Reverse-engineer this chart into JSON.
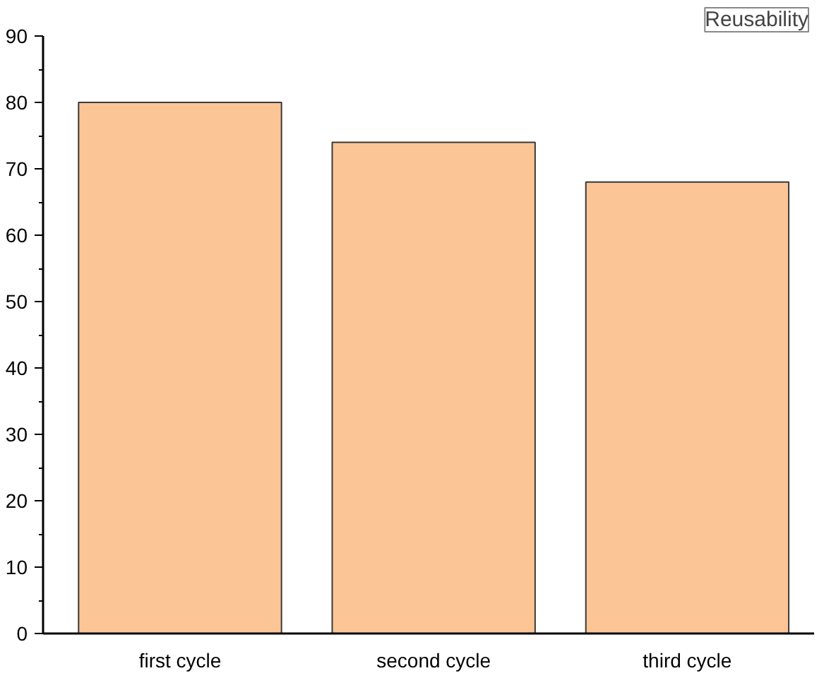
{
  "chart_data": {
    "type": "bar",
    "title": "Reusability",
    "categories": [
      "first cycle",
      "second cycle",
      "third cycle"
    ],
    "values": [
      80,
      74,
      68
    ],
    "color": "#fbc596",
    "ylim": [
      0,
      90
    ],
    "yticks": [
      0,
      10,
      20,
      30,
      40,
      50,
      60,
      70,
      80,
      90
    ],
    "grid": false
  }
}
